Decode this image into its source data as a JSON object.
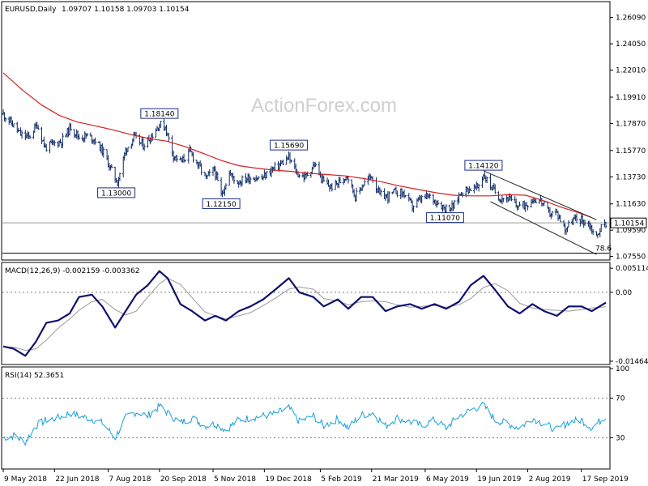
{
  "header": {
    "symbol": "EURUSD,Daily",
    "ohlc": "1.09707 1.10158 1.09703 1.10154"
  },
  "watermark": "ActionForex.com",
  "chart_data": [
    {
      "type": "candlestick",
      "id": "price",
      "title": "EURUSD,Daily",
      "ylim": [
        1.074,
        1.272
      ],
      "y_ticks": [
        "1.26090",
        "1.24050",
        "1.22010",
        "1.19910",
        "1.17870",
        "1.15770",
        "1.13730",
        "1.11630",
        "1.09590",
        "1.07550"
      ],
      "y_tick_values": [
        1.2609,
        1.2405,
        1.2201,
        1.1991,
        1.1787,
        1.1577,
        1.1373,
        1.1163,
        1.0959,
        1.0755
      ],
      "current_price": {
        "label": "1.10154",
        "value": 1.10154
      },
      "reference_line": {
        "label": "78.6",
        "value": 1.078
      },
      "annotations": [
        {
          "label": "1.18140",
          "date": "2018-09-20",
          "value": 1.1814
        },
        {
          "label": "1.13000",
          "date": "2018-08-14",
          "value": 1.13
        },
        {
          "label": "1.12150",
          "date": "2018-11-12",
          "value": 1.1215
        },
        {
          "label": "1.15690",
          "date": "2019-01-09",
          "value": 1.1569
        },
        {
          "label": "1.14120",
          "date": "2019-06-25",
          "value": 1.1412
        },
        {
          "label": "1.11070",
          "date": "2019-05-23",
          "value": 1.1107
        }
      ],
      "moving_average": [
        [
          "2018-05-09",
          1.218
        ],
        [
          "2018-05-25",
          1.205
        ],
        [
          "2018-06-11",
          1.193
        ],
        [
          "2018-06-26",
          1.185
        ],
        [
          "2018-07-11",
          1.18
        ],
        [
          "2018-07-26",
          1.177
        ],
        [
          "2018-08-10",
          1.174
        ],
        [
          "2018-08-27",
          1.17
        ],
        [
          "2018-09-11",
          1.167
        ],
        [
          "2018-09-26",
          1.165
        ],
        [
          "2018-10-11",
          1.161
        ],
        [
          "2018-10-26",
          1.156
        ],
        [
          "2018-11-12",
          1.15
        ],
        [
          "2018-11-27",
          1.146
        ],
        [
          "2018-12-12",
          1.144
        ],
        [
          "2018-12-27",
          1.1425
        ],
        [
          "2019-01-11",
          1.1415
        ],
        [
          "2019-01-28",
          1.14
        ],
        [
          "2019-02-12",
          1.139
        ],
        [
          "2019-02-27",
          1.138
        ],
        [
          "2019-03-14",
          1.136
        ],
        [
          "2019-03-29",
          1.1335
        ],
        [
          "2019-04-15",
          1.13
        ],
        [
          "2019-04-30",
          1.1275
        ],
        [
          "2019-05-15",
          1.125
        ],
        [
          "2019-05-30",
          1.123
        ],
        [
          "2019-06-14",
          1.1225
        ],
        [
          "2019-07-01",
          1.1225
        ],
        [
          "2019-07-16",
          1.1235
        ],
        [
          "2019-07-31",
          1.123
        ],
        [
          "2019-08-15",
          1.119
        ],
        [
          "2019-08-30",
          1.114
        ],
        [
          "2019-09-16",
          1.109
        ],
        [
          "2019-09-25",
          1.106
        ]
      ],
      "channel_upper": [
        [
          "2019-06-25",
          1.142
        ],
        [
          "2019-09-30",
          1.104
        ]
      ],
      "channel_lower": [
        [
          "2019-07-01",
          1.118
        ],
        [
          "2019-09-30",
          1.077
        ]
      ],
      "price_path": [
        [
          "2018-05-09",
          1.186
        ],
        [
          "2018-05-16",
          1.179
        ],
        [
          "2018-05-24",
          1.17
        ],
        [
          "2018-05-31",
          1.168
        ],
        [
          "2018-06-07",
          1.178
        ],
        [
          "2018-06-14",
          1.16
        ],
        [
          "2018-06-21",
          1.163
        ],
        [
          "2018-06-28",
          1.165
        ],
        [
          "2018-07-06",
          1.176
        ],
        [
          "2018-07-13",
          1.168
        ],
        [
          "2018-07-20",
          1.169
        ],
        [
          "2018-07-27",
          1.166
        ],
        [
          "2018-08-03",
          1.156
        ],
        [
          "2018-08-10",
          1.142
        ],
        [
          "2018-08-15",
          1.133
        ],
        [
          "2018-08-22",
          1.158
        ],
        [
          "2018-08-29",
          1.168
        ],
        [
          "2018-09-06",
          1.162
        ],
        [
          "2018-09-13",
          1.169
        ],
        [
          "2018-09-20",
          1.178
        ],
        [
          "2018-09-25",
          1.176
        ],
        [
          "2018-10-02",
          1.154
        ],
        [
          "2018-10-09",
          1.149
        ],
        [
          "2018-10-16",
          1.157
        ],
        [
          "2018-10-23",
          1.147
        ],
        [
          "2018-10-30",
          1.136
        ],
        [
          "2018-11-06",
          1.143
        ],
        [
          "2018-11-12",
          1.123
        ],
        [
          "2018-11-19",
          1.14
        ],
        [
          "2018-11-26",
          1.133
        ],
        [
          "2018-12-03",
          1.136
        ],
        [
          "2018-12-10",
          1.137
        ],
        [
          "2018-12-17",
          1.136
        ],
        [
          "2018-12-24",
          1.142
        ],
        [
          "2018-12-31",
          1.146
        ],
        [
          "2019-01-09",
          1.152
        ],
        [
          "2019-01-16",
          1.14
        ],
        [
          "2019-01-23",
          1.137
        ],
        [
          "2019-01-31",
          1.147
        ],
        [
          "2019-02-07",
          1.134
        ],
        [
          "2019-02-14",
          1.129
        ],
        [
          "2019-02-21",
          1.133
        ],
        [
          "2019-02-28",
          1.139
        ],
        [
          "2019-03-07",
          1.122
        ],
        [
          "2019-03-14",
          1.132
        ],
        [
          "2019-03-21",
          1.138
        ],
        [
          "2019-03-28",
          1.123
        ],
        [
          "2019-04-04",
          1.122
        ],
        [
          "2019-04-11",
          1.126
        ],
        [
          "2019-04-18",
          1.124
        ],
        [
          "2019-04-25",
          1.114
        ],
        [
          "2019-05-02",
          1.12
        ],
        [
          "2019-05-09",
          1.122
        ],
        [
          "2019-05-16",
          1.118
        ],
        [
          "2019-05-23",
          1.113
        ],
        [
          "2019-05-30",
          1.114
        ],
        [
          "2019-06-06",
          1.126
        ],
        [
          "2019-06-13",
          1.128
        ],
        [
          "2019-06-20",
          1.129
        ],
        [
          "2019-06-25",
          1.139
        ],
        [
          "2019-07-02",
          1.129
        ],
        [
          "2019-07-09",
          1.121
        ],
        [
          "2019-07-16",
          1.121
        ],
        [
          "2019-07-23",
          1.115
        ],
        [
          "2019-07-30",
          1.115
        ],
        [
          "2019-08-06",
          1.12
        ],
        [
          "2019-08-13",
          1.119
        ],
        [
          "2019-08-20",
          1.109
        ],
        [
          "2019-08-27",
          1.109
        ],
        [
          "2019-09-03",
          1.097
        ],
        [
          "2019-09-10",
          1.104
        ],
        [
          "2019-09-17",
          1.104
        ],
        [
          "2019-09-24",
          1.1
        ],
        [
          "2019-09-30",
          1.09
        ],
        [
          "2019-10-03",
          1.097
        ],
        [
          "2019-10-08",
          1.1015
        ]
      ]
    },
    {
      "type": "line",
      "id": "macd",
      "title": "MACD(12,26,9) -0.002159 -0.003362",
      "ylim": [
        -0.015,
        0.006
      ],
      "y_ticks": [
        "0.005114",
        "0.00",
        "-0.014647"
      ],
      "y_tick_values": [
        0.005114,
        0.0,
        -0.014647
      ],
      "current_label": "0.00",
      "series": [
        {
          "name": "MACD",
          "values": [
            [
              "2018-05-09",
              -0.0115
            ],
            [
              "2018-05-18",
              -0.012
            ],
            [
              "2018-05-28",
              -0.0135
            ],
            [
              "2018-06-06",
              -0.0105
            ],
            [
              "2018-06-15",
              -0.0065
            ],
            [
              "2018-06-25",
              -0.006
            ],
            [
              "2018-07-05",
              -0.0045
            ],
            [
              "2018-07-13",
              -0.001
            ],
            [
              "2018-07-24",
              -0.0005
            ],
            [
              "2018-08-02",
              -0.003
            ],
            [
              "2018-08-13",
              -0.0075
            ],
            [
              "2018-08-22",
              -0.004
            ],
            [
              "2018-08-31",
              -0.0005
            ],
            [
              "2018-09-10",
              0.0015
            ],
            [
              "2018-09-20",
              0.0045
            ],
            [
              "2018-09-27",
              0.003
            ],
            [
              "2018-10-08",
              -0.0025
            ],
            [
              "2018-10-18",
              -0.004
            ],
            [
              "2018-10-29",
              -0.006
            ],
            [
              "2018-11-07",
              -0.005
            ],
            [
              "2018-11-16",
              -0.006
            ],
            [
              "2018-11-27",
              -0.004
            ],
            [
              "2018-12-07",
              -0.003
            ],
            [
              "2018-12-18",
              -0.0015
            ],
            [
              "2018-12-28",
              0.0005
            ],
            [
              "2019-01-09",
              0.003
            ],
            [
              "2019-01-18",
              0.0
            ],
            [
              "2019-01-30",
              -0.001
            ],
            [
              "2019-02-08",
              -0.003
            ],
            [
              "2019-02-20",
              -0.0015
            ],
            [
              "2019-03-01",
              -0.0035
            ],
            [
              "2019-03-12",
              -0.001
            ],
            [
              "2019-03-22",
              -0.001
            ],
            [
              "2019-04-02",
              -0.004
            ],
            [
              "2019-04-12",
              -0.003
            ],
            [
              "2019-04-23",
              -0.0025
            ],
            [
              "2019-05-03",
              -0.0035
            ],
            [
              "2019-05-14",
              -0.0025
            ],
            [
              "2019-05-24",
              -0.0035
            ],
            [
              "2019-06-04",
              -0.002
            ],
            [
              "2019-06-14",
              0.0015
            ],
            [
              "2019-06-25",
              0.0035
            ],
            [
              "2019-07-05",
              0.0005
            ],
            [
              "2019-07-16",
              -0.003
            ],
            [
              "2019-07-26",
              -0.0045
            ],
            [
              "2019-08-06",
              -0.0025
            ],
            [
              "2019-08-16",
              -0.004
            ],
            [
              "2019-08-27",
              -0.005
            ],
            [
              "2019-09-06",
              -0.003
            ],
            [
              "2019-09-17",
              -0.003
            ],
            [
              "2019-09-26",
              -0.004
            ],
            [
              "2019-10-08",
              -0.0022
            ]
          ]
        }
      ]
    },
    {
      "type": "line",
      "id": "rsi",
      "title": "RSI(14) 52.3651",
      "ylim": [
        0,
        100
      ],
      "y_ticks": [
        "100",
        "70",
        "30",
        "0"
      ],
      "y_tick_values": [
        100,
        70,
        30,
        0
      ],
      "series": [
        {
          "name": "RSI",
          "values": [
            [
              "2018-05-09",
              30
            ],
            [
              "2018-05-18",
              32
            ],
            [
              "2018-05-28",
              26
            ],
            [
              "2018-06-06",
              42
            ],
            [
              "2018-06-15",
              48
            ],
            [
              "2018-06-25",
              50
            ],
            [
              "2018-07-05",
              55
            ],
            [
              "2018-07-13",
              52
            ],
            [
              "2018-07-24",
              49
            ],
            [
              "2018-08-02",
              45
            ],
            [
              "2018-08-13",
              30
            ],
            [
              "2018-08-22",
              50
            ],
            [
              "2018-08-31",
              56
            ],
            [
              "2018-09-10",
              52
            ],
            [
              "2018-09-20",
              62
            ],
            [
              "2018-09-27",
              55
            ],
            [
              "2018-10-08",
              45
            ],
            [
              "2018-10-18",
              50
            ],
            [
              "2018-10-29",
              42
            ],
            [
              "2018-11-07",
              44
            ],
            [
              "2018-11-16",
              38
            ],
            [
              "2018-11-27",
              48
            ],
            [
              "2018-12-07",
              50
            ],
            [
              "2018-12-18",
              52
            ],
            [
              "2018-12-28",
              54
            ],
            [
              "2019-01-09",
              60
            ],
            [
              "2019-01-18",
              46
            ],
            [
              "2019-01-30",
              52
            ],
            [
              "2019-02-08",
              42
            ],
            [
              "2019-02-20",
              49
            ],
            [
              "2019-03-01",
              40
            ],
            [
              "2019-03-12",
              53
            ],
            [
              "2019-03-22",
              55
            ],
            [
              "2019-04-02",
              42
            ],
            [
              "2019-04-12",
              50
            ],
            [
              "2019-04-23",
              46
            ],
            [
              "2019-05-03",
              42
            ],
            [
              "2019-05-14",
              48
            ],
            [
              "2019-05-24",
              40
            ],
            [
              "2019-06-04",
              52
            ],
            [
              "2019-06-14",
              58
            ],
            [
              "2019-06-25",
              63
            ],
            [
              "2019-07-05",
              48
            ],
            [
              "2019-07-16",
              44
            ],
            [
              "2019-07-26",
              40
            ],
            [
              "2019-08-06",
              50
            ],
            [
              "2019-08-16",
              44
            ],
            [
              "2019-08-27",
              38
            ],
            [
              "2019-09-06",
              46
            ],
            [
              "2019-09-17",
              48
            ],
            [
              "2019-09-26",
              40
            ],
            [
              "2019-10-08",
              52
            ]
          ]
        }
      ]
    }
  ],
  "x_axis": {
    "labels": [
      "9 May 2018",
      "22 Jun 2018",
      "7 Aug 2018",
      "20 Sep 2018",
      "5 Nov 2018",
      "19 Dec 2018",
      "5 Feb 2019",
      "21 Mar 2019",
      "6 May 2019",
      "19 Jun 2019",
      "2 Aug 2019",
      "17 Sep 2019"
    ],
    "dates": [
      "2018-05-09",
      "2018-06-22",
      "2018-08-07",
      "2018-09-20",
      "2018-11-05",
      "2018-12-19",
      "2019-02-05",
      "2019-03-21",
      "2019-05-06",
      "2019-06-19",
      "2019-08-02",
      "2019-09-17"
    ]
  },
  "colors": {
    "candle": "#0f2a66",
    "ma": "#d62020",
    "macd": "#101070",
    "signal": "#9a9a9a",
    "rsi": "#1aa0d8",
    "channel": "#222222",
    "label_border": "#1a2c8a",
    "panel_border": "#000000",
    "grid_dash": "#7a7a7a"
  }
}
